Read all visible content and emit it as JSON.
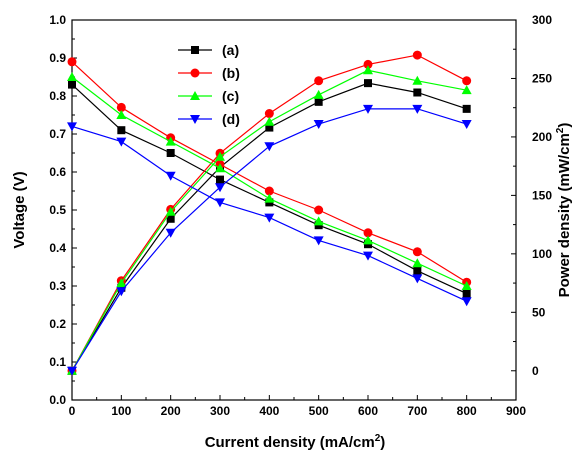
{
  "chart_data": {
    "type": "line",
    "xlabel": "Current density (mA/cm",
    "xlabel_sup": "2",
    "xlabel_tail": ")",
    "ylabel_left": "Voltage (V)",
    "ylabel_right": "Power density (mW/cm",
    "ylabel_right_sup": "2",
    "ylabel_right_tail": ")",
    "xlim": [
      0,
      900
    ],
    "ylim_left": [
      0.0,
      1.0
    ],
    "ylim_right": [
      -25,
      300
    ],
    "x_ticks": [
      0,
      100,
      200,
      300,
      400,
      500,
      600,
      700,
      800,
      900
    ],
    "y_left_ticks": [
      "0.0",
      "0.1",
      "0.2",
      "0.3",
      "0.4",
      "0.5",
      "0.6",
      "0.7",
      "0.8",
      "0.9",
      "1.0"
    ],
    "y_right_ticks": [
      0,
      50,
      100,
      150,
      200,
      250,
      300
    ],
    "legend_position": "top-center",
    "x": [
      0,
      100,
      200,
      300,
      400,
      500,
      600,
      700,
      800
    ],
    "series": [
      {
        "name": "(a)",
        "color": "#000000",
        "marker": "square",
        "voltage": [
          0.83,
          0.71,
          0.65,
          0.58,
          0.52,
          0.46,
          0.41,
          0.34,
          0.28
        ],
        "power": [
          0,
          71,
          130,
          174,
          208,
          230,
          246,
          238,
          224
        ]
      },
      {
        "name": "(b)",
        "color": "#ff0000",
        "marker": "circle",
        "voltage": [
          0.89,
          0.77,
          0.69,
          0.62,
          0.55,
          0.5,
          0.44,
          0.39,
          0.31
        ],
        "power": [
          0,
          77,
          138,
          186,
          220,
          248,
          262,
          270,
          248
        ]
      },
      {
        "name": "(c)",
        "color": "#00ff00",
        "marker": "triangle-up",
        "voltage": [
          0.85,
          0.75,
          0.68,
          0.61,
          0.53,
          0.47,
          0.42,
          0.36,
          0.3
        ],
        "power": [
          0,
          75,
          136,
          183,
          213,
          236,
          257,
          248,
          240
        ]
      },
      {
        "name": "(d)",
        "color": "#0000ff",
        "marker": "triangle-down",
        "voltage": [
          0.72,
          0.68,
          0.59,
          0.52,
          0.48,
          0.42,
          0.38,
          0.32,
          0.26
        ],
        "power": [
          0,
          68,
          118,
          157,
          192,
          211,
          224,
          224,
          211
        ]
      }
    ]
  }
}
